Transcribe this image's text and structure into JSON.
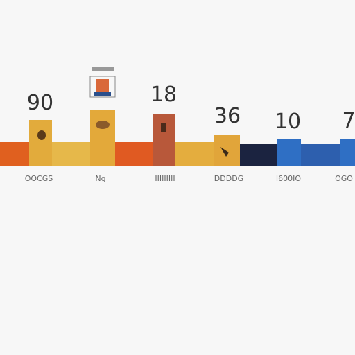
{
  "numbers": [
    "90",
    "18",
    "36",
    "10",
    "7"
  ],
  "labels": [
    "OOCGS",
    "Ng",
    "IIIIIIIII",
    "DDDDG",
    "I600IO",
    "OGO"
  ]
}
